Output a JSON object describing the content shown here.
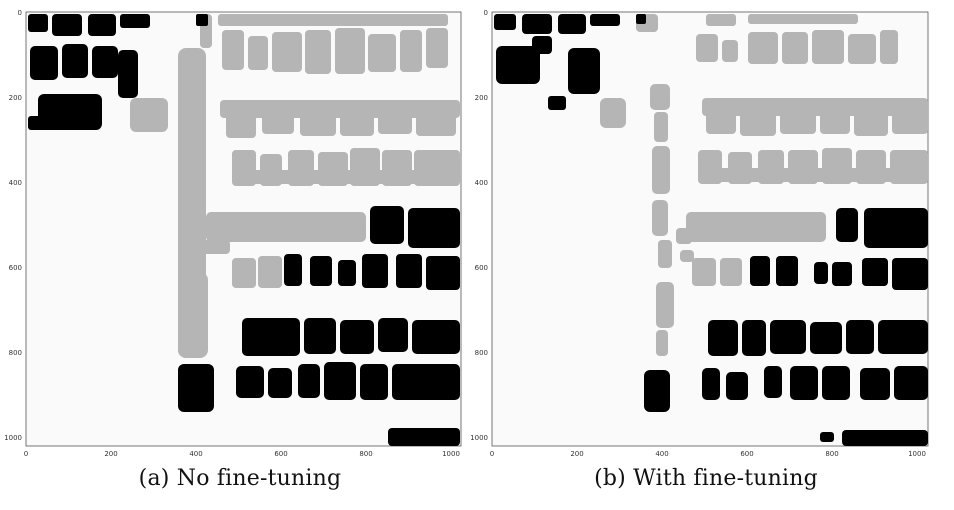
{
  "figure": {
    "panels": [
      {
        "caption": "(a) No fine-tuning",
        "x_ticks": [
          "0",
          "200",
          "400",
          "600",
          "800",
          "1000"
        ],
        "y_ticks": [
          "0",
          "200",
          "400",
          "600",
          "800",
          "1000"
        ]
      },
      {
        "caption": "(b) With fine-tuning",
        "x_ticks": [
          "0",
          "200",
          "400",
          "600",
          "800",
          "1000"
        ],
        "y_ticks": [
          "0",
          "200",
          "400",
          "600",
          "800",
          "1000"
        ]
      }
    ],
    "colors": {
      "background": "#fafafa",
      "gray_class": "#b5b5b5",
      "black_class": "#000000"
    }
  }
}
